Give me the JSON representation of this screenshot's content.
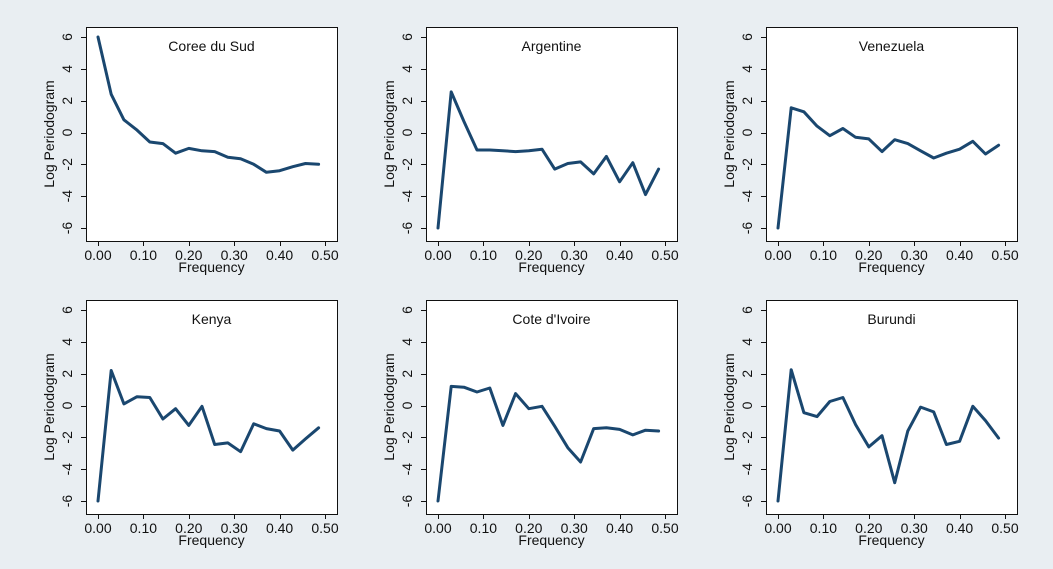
{
  "colors": {
    "background": "#e9eef2",
    "plot_area": "#ffffff",
    "line": "#1a476f"
  },
  "chart_data": [
    {
      "type": "line",
      "title": "Coree du Sud",
      "xlabel": "Frequency",
      "ylabel": "Log Periodogram",
      "xlim": [
        0,
        0.5
      ],
      "ylim": [
        -6,
        6
      ],
      "grid": false,
      "xticks": [
        0,
        0.1,
        0.2,
        0.3,
        0.4,
        0.5
      ],
      "xtick_labels": [
        "0.00",
        "0.10",
        "0.20",
        "0.30",
        "0.40",
        "0.50"
      ],
      "yticks": [
        6,
        4,
        2,
        0,
        -2,
        -4,
        -6
      ],
      "ytick_labels": [
        "6",
        "4",
        "2",
        "0",
        "-2",
        "-4",
        "-6"
      ],
      "x": [
        0,
        0.029,
        0.057,
        0.086,
        0.114,
        0.143,
        0.171,
        0.2,
        0.229,
        0.257,
        0.286,
        0.314,
        0.343,
        0.371,
        0.4,
        0.429,
        0.457,
        0.486
      ],
      "y": [
        6.0,
        2.4,
        0.8,
        0.15,
        -0.6,
        -0.7,
        -1.3,
        -1.0,
        -1.15,
        -1.2,
        -1.55,
        -1.65,
        -2.0,
        -2.5,
        -2.4,
        -2.15,
        -1.95,
        -2.0
      ]
    },
    {
      "type": "line",
      "title": "Argentine",
      "xlabel": "Frequency",
      "ylabel": "Log Periodogram",
      "xlim": [
        0,
        0.5
      ],
      "ylim": [
        -6,
        6
      ],
      "grid": false,
      "xticks": [
        0,
        0.1,
        0.2,
        0.3,
        0.4,
        0.5
      ],
      "xtick_labels": [
        "0.00",
        "0.10",
        "0.20",
        "0.30",
        "0.40",
        "0.50"
      ],
      "yticks": [
        6,
        4,
        2,
        0,
        -2,
        -4,
        -6
      ],
      "ytick_labels": [
        "6",
        "4",
        "2",
        "0",
        "-2",
        "-4",
        "-6"
      ],
      "x": [
        0,
        0.029,
        0.057,
        0.086,
        0.114,
        0.143,
        0.171,
        0.2,
        0.229,
        0.257,
        0.286,
        0.314,
        0.343,
        0.371,
        0.4,
        0.429,
        0.457,
        0.486
      ],
      "y": [
        -6.0,
        2.55,
        0.7,
        -1.1,
        -1.1,
        -1.15,
        -1.2,
        -1.15,
        -1.05,
        -2.3,
        -1.95,
        -1.85,
        -2.6,
        -1.5,
        -3.1,
        -1.9,
        -3.9,
        -2.3
      ]
    },
    {
      "type": "line",
      "title": "Venezuela",
      "xlabel": "Frequency",
      "ylabel": "Log Periodogram",
      "xlim": [
        0,
        0.5
      ],
      "ylim": [
        -6,
        6
      ],
      "grid": false,
      "xticks": [
        0,
        0.1,
        0.2,
        0.3,
        0.4,
        0.5
      ],
      "xtick_labels": [
        "0.00",
        "0.10",
        "0.20",
        "0.30",
        "0.40",
        "0.50"
      ],
      "yticks": [
        6,
        4,
        2,
        0,
        -2,
        -4,
        -6
      ],
      "ytick_labels": [
        "6",
        "4",
        "2",
        "0",
        "-2",
        "-4",
        "-6"
      ],
      "x": [
        0,
        0.029,
        0.057,
        0.086,
        0.114,
        0.143,
        0.171,
        0.2,
        0.229,
        0.257,
        0.286,
        0.314,
        0.343,
        0.371,
        0.4,
        0.429,
        0.457,
        0.486
      ],
      "y": [
        -6.0,
        1.55,
        1.3,
        0.4,
        -0.2,
        0.25,
        -0.3,
        -0.4,
        -1.2,
        -0.45,
        -0.7,
        -1.15,
        -1.6,
        -1.3,
        -1.05,
        -0.55,
        -1.35,
        -0.8
      ]
    },
    {
      "type": "line",
      "title": "Kenya",
      "xlabel": "Frequency",
      "ylabel": "Log Periodogram",
      "xlim": [
        0,
        0.5
      ],
      "ylim": [
        -6,
        6
      ],
      "grid": false,
      "xticks": [
        0,
        0.1,
        0.2,
        0.3,
        0.4,
        0.5
      ],
      "xtick_labels": [
        "0.00",
        "0.10",
        "0.20",
        "0.30",
        "0.40",
        "0.50"
      ],
      "yticks": [
        6,
        4,
        2,
        0,
        -2,
        -4,
        -6
      ],
      "ytick_labels": [
        "6",
        "4",
        "2",
        "0",
        "-2",
        "-4",
        "-6"
      ],
      "x": [
        0,
        0.029,
        0.057,
        0.086,
        0.114,
        0.143,
        0.171,
        0.2,
        0.229,
        0.257,
        0.286,
        0.314,
        0.343,
        0.371,
        0.4,
        0.429,
        0.457,
        0.486
      ],
      "y": [
        -6.0,
        2.2,
        0.1,
        0.55,
        0.5,
        -0.85,
        -0.2,
        -1.25,
        -0.05,
        -2.45,
        -2.35,
        -2.9,
        -1.15,
        -1.45,
        -1.6,
        -2.8,
        -2.1,
        -1.4
      ]
    },
    {
      "type": "line",
      "title": "Cote d'Ivoire",
      "xlabel": "Frequency",
      "ylabel": "Log Periodogram",
      "xlim": [
        0,
        0.5
      ],
      "ylim": [
        -6,
        6
      ],
      "grid": false,
      "xticks": [
        0,
        0.1,
        0.2,
        0.3,
        0.4,
        0.5
      ],
      "xtick_labels": [
        "0.00",
        "0.10",
        "0.20",
        "0.30",
        "0.40",
        "0.50"
      ],
      "yticks": [
        6,
        4,
        2,
        0,
        -2,
        -4,
        -6
      ],
      "ytick_labels": [
        "6",
        "4",
        "2",
        "0",
        "-2",
        "-4",
        "-6"
      ],
      "x": [
        0,
        0.029,
        0.057,
        0.086,
        0.114,
        0.143,
        0.171,
        0.2,
        0.229,
        0.257,
        0.286,
        0.314,
        0.343,
        0.371,
        0.4,
        0.429,
        0.457,
        0.486
      ],
      "y": [
        -6.0,
        1.2,
        1.15,
        0.85,
        1.1,
        -1.25,
        0.75,
        -0.2,
        -0.05,
        -1.3,
        -2.65,
        -3.55,
        -1.45,
        -1.4,
        -1.5,
        -1.85,
        -1.55,
        -1.6
      ]
    },
    {
      "type": "line",
      "title": "Burundi",
      "xlabel": "Frequency",
      "ylabel": "Log Periodogram",
      "xlim": [
        0,
        0.5
      ],
      "ylim": [
        -6,
        6
      ],
      "grid": false,
      "xticks": [
        0,
        0.1,
        0.2,
        0.3,
        0.4,
        0.5
      ],
      "xtick_labels": [
        "0.00",
        "0.10",
        "0.20",
        "0.30",
        "0.40",
        "0.50"
      ],
      "yticks": [
        6,
        4,
        2,
        0,
        -2,
        -4,
        -6
      ],
      "ytick_labels": [
        "6",
        "4",
        "2",
        "0",
        "-2",
        "-4",
        "-6"
      ],
      "x": [
        0,
        0.029,
        0.057,
        0.086,
        0.114,
        0.143,
        0.171,
        0.2,
        0.229,
        0.257,
        0.286,
        0.314,
        0.343,
        0.371,
        0.4,
        0.429,
        0.457,
        0.486
      ],
      "y": [
        -6.0,
        2.25,
        -0.45,
        -0.7,
        0.25,
        0.5,
        -1.2,
        -2.6,
        -1.9,
        -4.85,
        -1.6,
        -0.1,
        -0.4,
        -2.45,
        -2.25,
        -0.05,
        -0.95,
        -2.05
      ]
    }
  ]
}
